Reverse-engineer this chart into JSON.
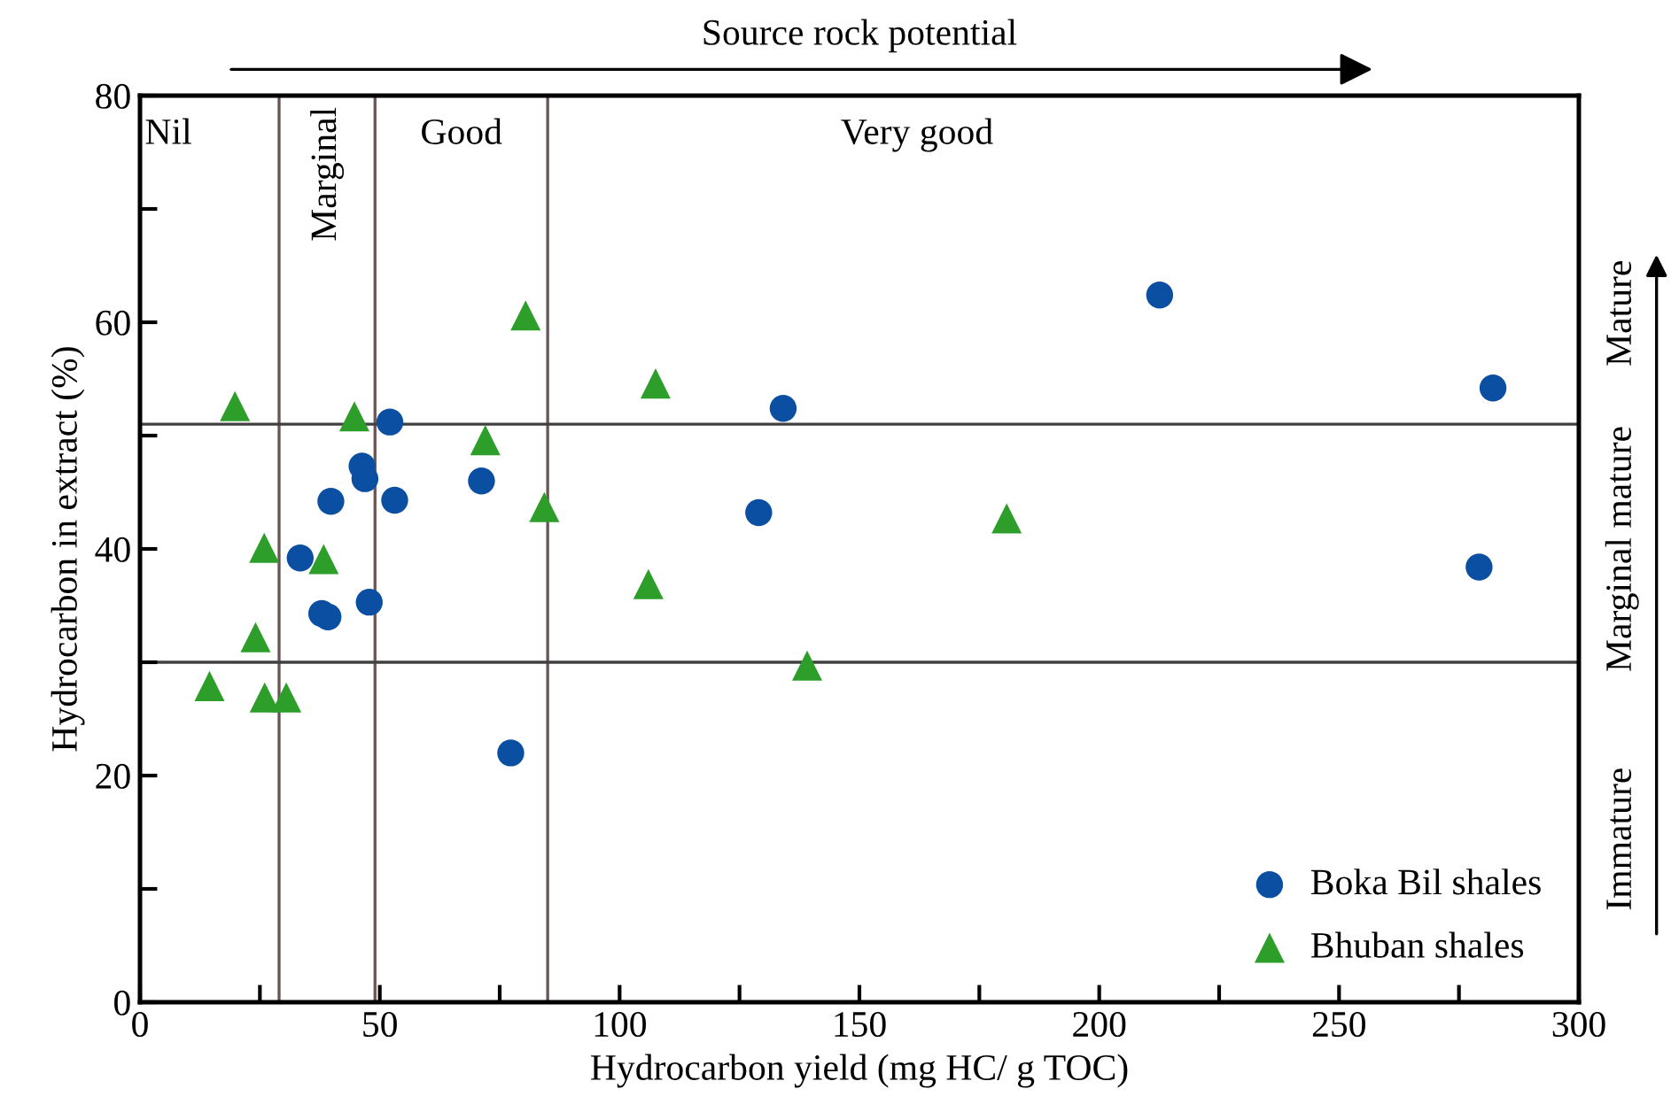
{
  "chart_data": {
    "type": "scatter",
    "xlabel": "Hydrocarbon yield (mg HC/ g TOC)",
    "ylabel": "Hydrocarbon in extract (%)",
    "xlim": [
      0,
      300
    ],
    "ylim": [
      0,
      80
    ],
    "xticks": [
      0,
      {
        "value": 25,
        "label": null
      },
      50,
      {
        "value": 75,
        "label": null
      },
      100,
      {
        "value": 125,
        "label": null
      },
      150,
      {
        "value": 175,
        "label": null
      },
      200,
      {
        "value": 225,
        "label": null
      },
      250,
      {
        "value": 275,
        "label": null
      },
      300
    ],
    "yticks": [
      0,
      {
        "value": 10,
        "label": null
      },
      20,
      {
        "value": 30,
        "label": null
      },
      40,
      {
        "value": 50,
        "label": null
      },
      60,
      {
        "value": 70,
        "label": null
      },
      80
    ],
    "grid": false,
    "legend": "bottom right",
    "series": [
      {
        "name": "Boka Bil shales",
        "color": "#0b4fa3",
        "marker": "circle",
        "x": [
          52.1,
          46.3,
          46.9,
          71.2,
          39.8,
          53.1,
          33.4,
          47.8,
          37.9,
          39.2,
          77.3,
          134.1,
          129,
          212.6,
          282.1,
          279.2
        ],
        "values": [
          51.2,
          47.3,
          46.2,
          46,
          44.2,
          44.3,
          39.2,
          35.3,
          34.3,
          34.0,
          22.0,
          52.4,
          43.2,
          62.4,
          54.2,
          38.4
        ]
      },
      {
        "name": "Bhuban shales",
        "color": "#2e9e2a",
        "marker": "triangle",
        "x": [
          80.4,
          107.5,
          19.8,
          44.7,
          72,
          84.3,
          25.9,
          38.3,
          106,
          24.1,
          14.5,
          26,
          30.5,
          139.1,
          180.7
        ],
        "values": [
          60.6,
          54.6,
          52.6,
          51.7,
          49.6,
          43.7,
          40.1,
          39.1,
          36.9,
          32.2,
          27.9,
          26.9,
          26.9,
          29.7,
          42.7
        ]
      }
    ],
    "ref_lines": [
      {
        "axis": "x",
        "value": 29,
        "color": "#6b5555"
      },
      {
        "axis": "x",
        "value": 49,
        "color": "#6b5555"
      },
      {
        "axis": "x",
        "value": 85,
        "color": "#6b5555"
      },
      {
        "axis": "y",
        "value": 30,
        "color": "#404040"
      },
      {
        "axis": "y",
        "value": 51,
        "color": "#404040"
      }
    ],
    "annotations": [
      "Source rock potential",
      "Nil",
      "Marginal",
      "Good",
      "Very good",
      "Mature",
      "Marginal mature",
      "Immature"
    ]
  }
}
